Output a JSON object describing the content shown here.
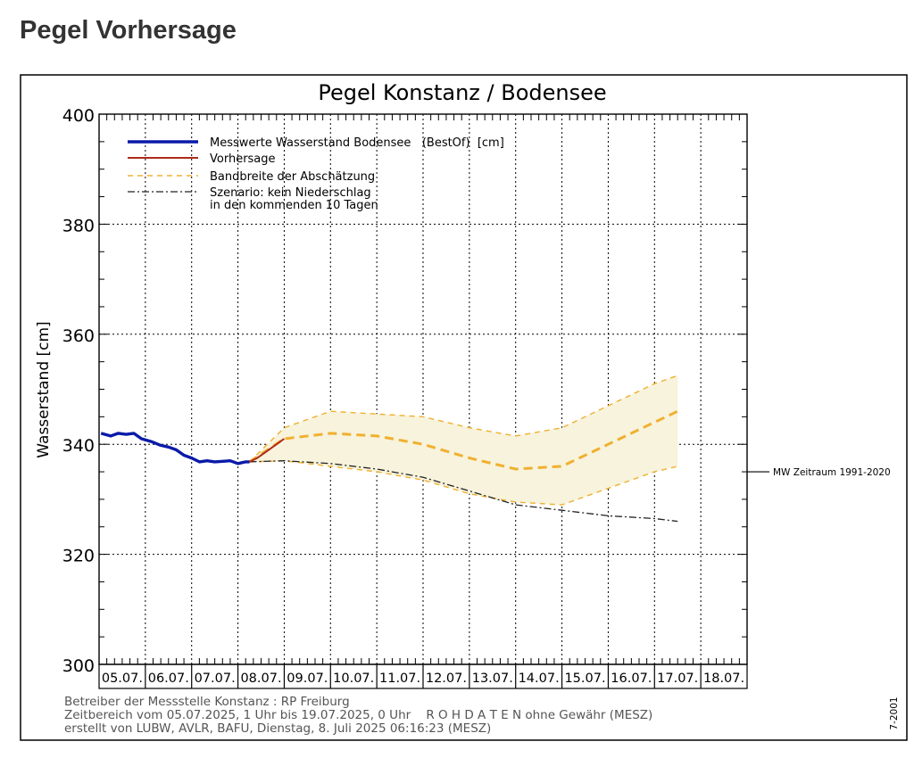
{
  "page": {
    "heading": "Pegel Vorhersage"
  },
  "chart_data": {
    "type": "line",
    "title": "Pegel Konstanz / Bodensee",
    "ylabel": "Wasserstand [cm]",
    "xlabel": "",
    "ylim": [
      300,
      400
    ],
    "y_ticks": [
      300,
      320,
      340,
      360,
      380,
      400
    ],
    "x_day_labels": [
      "05.07.",
      "06.07.",
      "07.07.",
      "08.07.",
      "09.07.",
      "10.07.",
      "11.07.",
      "12.07.",
      "13.07.",
      "14.07.",
      "15.07.",
      "16.07.",
      "17.07.",
      "18.07."
    ],
    "grid": true,
    "legend_position": "top-left",
    "legend": [
      {
        "label": "Messwerte Wasserstand Bodensee   (BestOf)  [cm]",
        "style": "solid-thick",
        "color": "#0a1aa8"
      },
      {
        "label": "Vorhersage",
        "style": "solid",
        "color": "#b02a1a"
      },
      {
        "label": "Bandbreite der Abschätzung",
        "style": "dashed",
        "color": "#f0b030"
      },
      {
        "label": "Szenario: kein Niederschlag",
        "label2": "in den kommenden 10 Tagen",
        "style": "dash-dot",
        "color": "#222222"
      }
    ],
    "series": [
      {
        "name": "Messwerte Wasserstand Bodensee   (BestOf)  [cm]",
        "color": "#0a1aa8",
        "x": [
          "05.07. 01:00",
          "05.07. 06:00",
          "05.07. 10:00",
          "05.07. 14:00",
          "05.07. 18:00",
          "05.07. 22:00",
          "06.07. 03:00",
          "06.07. 08:00",
          "06.07. 12:00",
          "06.07. 16:00",
          "06.07. 20:00",
          "07.07. 00:00",
          "07.07. 04:00",
          "07.07. 08:00",
          "07.07. 12:00",
          "07.07. 16:00",
          "07.07. 20:00",
          "08.07. 00:00",
          "08.07. 04:00",
          "08.07. 06:00"
        ],
        "y": [
          342,
          341.5,
          342,
          341.8,
          342,
          341,
          340.5,
          339.8,
          339.5,
          339,
          338,
          337.5,
          336.8,
          337,
          336.8,
          336.9,
          337,
          336.5,
          336.8,
          336.8
        ]
      },
      {
        "name": "Vorhersage",
        "color": "#b02a1a",
        "x": [
          "08.07. 06:00",
          "08.07. 10:00",
          "08.07. 14:00",
          "08.07. 18:00",
          "08.07. 22:00",
          "09.07. 00:00"
        ],
        "y": [
          336.8,
          337.5,
          338.5,
          339.5,
          340.5,
          341
        ]
      },
      {
        "name": "Bandbreite der Abschätzung",
        "color": "#f0b030",
        "x": [
          "08.07. 06:00",
          "09.07. 00:00",
          "10.07. 00:00",
          "11.07. 00:00",
          "12.07. 00:00",
          "13.07. 00:00",
          "14.07. 00:00",
          "15.07. 00:00",
          "16.07. 00:00",
          "17.07. 00:00",
          "17.07. 12:00"
        ],
        "median": [
          336.8,
          341,
          342,
          341.5,
          340,
          337.5,
          335.5,
          336,
          340,
          344,
          346
        ],
        "upper": [
          336.8,
          343,
          346,
          345.5,
          345,
          343,
          341.5,
          343,
          347,
          351,
          352.5
        ],
        "lower": [
          336.8,
          337,
          336,
          335,
          333.5,
          331,
          329.5,
          329,
          332,
          335,
          336
        ]
      },
      {
        "name": "Szenario: kein Niederschlag",
        "color": "#222222",
        "x": [
          "08.07. 06:00",
          "09.07. 00:00",
          "10.07. 00:00",
          "11.07. 00:00",
          "12.07. 00:00",
          "13.07. 00:00",
          "14.07. 00:00",
          "15.07. 00:00",
          "16.07. 00:00",
          "17.07. 00:00",
          "17.07. 12:00"
        ],
        "y": [
          336.8,
          337,
          336.5,
          335.5,
          334,
          331.5,
          329,
          328,
          327,
          326.5,
          326
        ]
      }
    ],
    "reference_line": {
      "label": "MW Zeitraum 1991-2020",
      "value": 335
    },
    "footer": [
      "Betreiber der Messstelle Konstanz : RP Freiburg",
      "Zeitbereich vom 05.07.2025, 1 Uhr bis 19.07.2025, 0 Uhr    R O H D A T E N ohne Gewähr (MESZ)",
      "erstellt von LUBW, AVLR, BAFU, Dienstag, 8. Juli 2025 06:16:23 (MESZ)"
    ],
    "side_code": "7-2001"
  }
}
